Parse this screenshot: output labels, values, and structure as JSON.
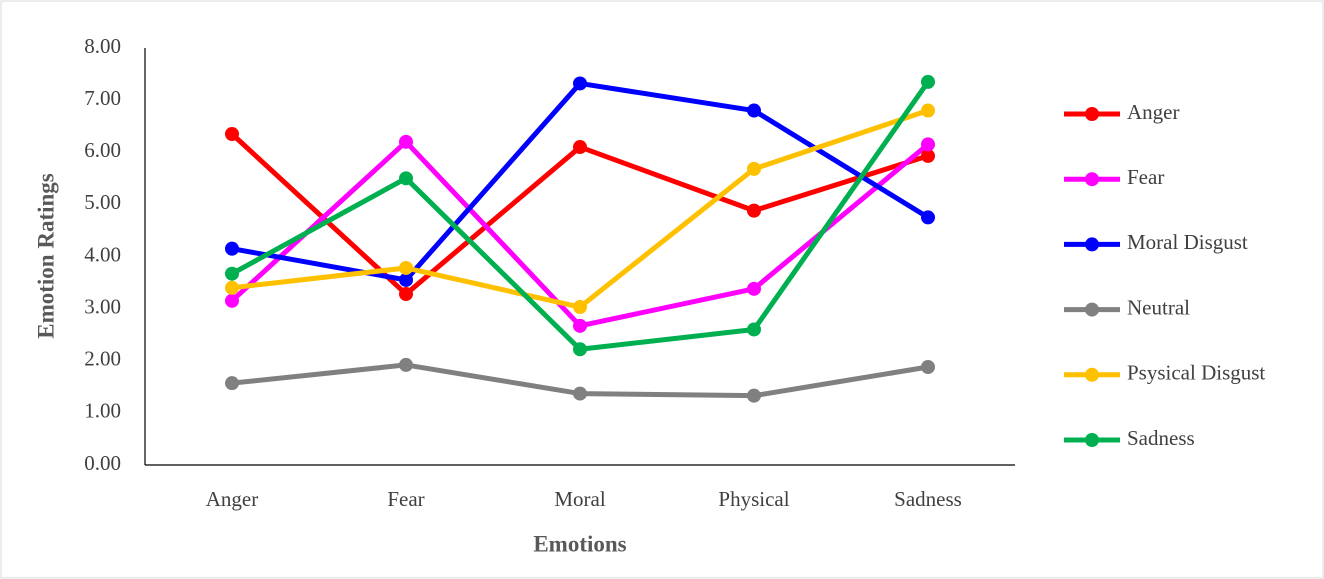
{
  "chart_data": {
    "type": "line",
    "x_label": "Emotions",
    "y_label": "Emotion  Ratings",
    "categories": [
      "Anger",
      "Fear",
      "Moral",
      "Physical",
      "Sadness"
    ],
    "series": [
      {
        "name": "Anger",
        "color": "#ff0000",
        "values": [
          6.35,
          3.28,
          6.1,
          4.88,
          5.93
        ]
      },
      {
        "name": "Fear",
        "color": "#ff00ff",
        "values": [
          3.15,
          6.2,
          2.67,
          3.38,
          6.15
        ]
      },
      {
        "name": "Moral Disgust",
        "color": "#0000ff",
        "values": [
          4.15,
          3.55,
          7.32,
          6.8,
          4.75
        ]
      },
      {
        "name": "Neutral",
        "color": "#808080",
        "values": [
          1.57,
          1.92,
          1.37,
          1.33,
          1.88
        ]
      },
      {
        "name": "Psysical Disgust",
        "color": "#ffc000",
        "values": [
          3.4,
          3.78,
          3.03,
          5.68,
          6.8
        ]
      },
      {
        "name": "Sadness",
        "color": "#00b050",
        "values": [
          3.67,
          5.5,
          2.22,
          2.6,
          7.35
        ]
      }
    ],
    "ylim": [
      0,
      8
    ],
    "yticks": [
      {
        "value": 0,
        "label": "0.00"
      },
      {
        "value": 1,
        "label": "1.00"
      },
      {
        "value": 2,
        "label": "2.00"
      },
      {
        "value": 3,
        "label": "3.00"
      },
      {
        "value": 4,
        "label": "4.00"
      },
      {
        "value": 5,
        "label": "5.00"
      },
      {
        "value": 6,
        "label": "6.00"
      },
      {
        "value": 7,
        "label": "7.00"
      },
      {
        "value": 8,
        "label": "8.00"
      }
    ],
    "grid": false,
    "legend": "right"
  }
}
